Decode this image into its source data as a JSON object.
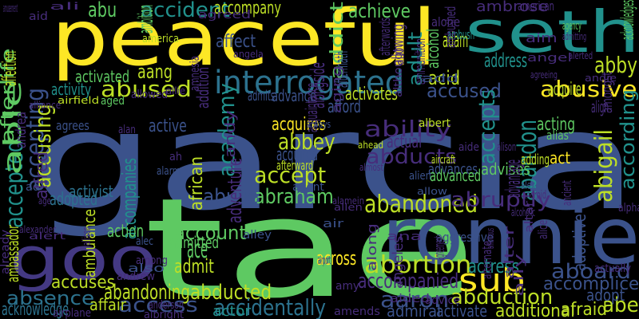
{
  "words": [
    {
      "text": "garcia",
      "color": "#3b528b"
    },
    {
      "text": "tae",
      "color": "#5ec962"
    },
    {
      "text": "peaceful",
      "color": "#fde725"
    },
    {
      "text": "seth",
      "color": "#21918c"
    },
    {
      "text": "ronnie",
      "color": "#3b528b"
    },
    {
      "text": "goo",
      "color": "#443983"
    },
    {
      "text": "interrogated",
      "color": "#2c728e"
    },
    {
      "text": "sub",
      "color": "#fde725"
    },
    {
      "text": "abusive",
      "color": "#fde725"
    },
    {
      "text": "abandoned",
      "color": "#bddf26"
    },
    {
      "text": "abortion",
      "color": "#bddf26"
    },
    {
      "text": "abduction",
      "color": "#bddf26"
    },
    {
      "text": "accident",
      "color": "#21918c"
    },
    {
      "text": "abused",
      "color": "#bddf26"
    },
    {
      "text": "abducts",
      "color": "#472d7b"
    },
    {
      "text": "ability",
      "color": "#472d7b"
    },
    {
      "text": "abigail",
      "color": "#bddf26"
    },
    {
      "text": "abandon",
      "color": "#21918c"
    },
    {
      "text": "abbey",
      "color": "#bddf26"
    },
    {
      "text": "accept",
      "color": "#bddf26"
    },
    {
      "text": "abraham",
      "color": "#5ec962"
    },
    {
      "text": "abruptly",
      "color": "#472d7b"
    },
    {
      "text": "accompanied",
      "color": "#472d7b"
    },
    {
      "text": "abandoning",
      "color": "#bddf26"
    },
    {
      "text": "abducted",
      "color": "#bddf26"
    },
    {
      "text": "absence",
      "color": "#2c728e"
    },
    {
      "text": "accidentally",
      "color": "#2c728e"
    },
    {
      "text": "access",
      "color": "#3b528b"
    },
    {
      "text": "aaron",
      "color": "#3b528b"
    },
    {
      "text": "aboard",
      "color": "#3b528b"
    },
    {
      "text": "accomplice",
      "color": "#3b528b"
    },
    {
      "text": "accused",
      "color": "#3b528b"
    },
    {
      "text": "accepts",
      "color": "#21918c"
    },
    {
      "text": "accepted",
      "color": "#21918c"
    },
    {
      "text": "accepting",
      "color": "#3b528b"
    },
    {
      "text": "accusing",
      "color": "#bddf26"
    },
    {
      "text": "abuse",
      "color": "#3b528b"
    },
    {
      "text": "account",
      "color": "#5ec962"
    },
    {
      "text": "accompany",
      "color": "#bddf26"
    },
    {
      "text": "abby",
      "color": "#bddf26"
    },
    {
      "text": "according",
      "color": "#21918c"
    },
    {
      "text": "acid",
      "color": "#bddf26"
    },
    {
      "text": "abe",
      "color": "#bddf26"
    },
    {
      "text": "acting",
      "color": "#5ec962"
    },
    {
      "text": "achieve",
      "color": "#5ec962"
    },
    {
      "text": "abu",
      "color": "#5ec962"
    },
    {
      "text": "aang",
      "color": "#bddf26"
    },
    {
      "text": "able",
      "color": "#5ec962"
    },
    {
      "text": "accuses",
      "color": "#bddf26"
    },
    {
      "text": "academy",
      "color": "#21918c"
    },
    {
      "text": "accompanies",
      "color": "#21918c"
    },
    {
      "text": "acknowledge",
      "color": "#2c728e"
    },
    {
      "text": "affair",
      "color": "#bddf26"
    },
    {
      "text": "across",
      "color": "#fde725"
    },
    {
      "text": "actress",
      "color": "#21918c"
    },
    {
      "text": "actor",
      "color": "#21918c"
    },
    {
      "text": "admiral",
      "color": "#3b528b"
    },
    {
      "text": "activate",
      "color": "#3b528b"
    },
    {
      "text": "additional",
      "color": "#bddf26"
    },
    {
      "text": "afraid",
      "color": "#bddf26"
    },
    {
      "text": "ace",
      "color": "#5ec962"
    },
    {
      "text": "act",
      "color": "#fde725"
    },
    {
      "text": "acquires",
      "color": "#fde725"
    },
    {
      "text": "acquired",
      "color": "#3b528b"
    },
    {
      "text": "acquire",
      "color": "#bddf26"
    },
    {
      "text": "advances",
      "color": "#3b528b"
    },
    {
      "text": "activist",
      "color": "#2c728e"
    },
    {
      "text": "adopted",
      "color": "#2c728e"
    },
    {
      "text": "advanced",
      "color": "#5ec962"
    },
    {
      "text": "advises",
      "color": "#5ec962"
    },
    {
      "text": "adding",
      "color": "#bddf26"
    },
    {
      "text": "activity",
      "color": "#21918c"
    },
    {
      "text": "active",
      "color": "#3b528b"
    },
    {
      "text": "activated",
      "color": "#5ec962"
    },
    {
      "text": "admit",
      "color": "#bddf26"
    },
    {
      "text": "admitted",
      "color": "#5ec962"
    },
    {
      "text": "action",
      "color": "#5ec962"
    },
    {
      "text": "adult",
      "color": "#21918c"
    },
    {
      "text": "address",
      "color": "#21918c"
    },
    {
      "text": "adam",
      "color": "#bddf26"
    },
    {
      "text": "actual",
      "color": "#472d7b"
    },
    {
      "text": "affect",
      "color": "#3b528b"
    },
    {
      "text": "afford",
      "color": "#3b528b"
    },
    {
      "text": "activates",
      "color": "#bddf26"
    },
    {
      "text": "advance",
      "color": "#3b528b"
    },
    {
      "text": "admits",
      "color": "#3b528b"
    },
    {
      "text": "advice",
      "color": "#472d7b"
    },
    {
      "text": "adopt",
      "color": "#3b528b"
    },
    {
      "text": "adoptive",
      "color": "#3b528b"
    },
    {
      "text": "advantage",
      "color": "#472d7b"
    },
    {
      "text": "addition",
      "color": "#472d7b"
    },
    {
      "text": "adventure",
      "color": "#472d7b"
    },
    {
      "text": "acquaintance",
      "color": "#472d7b"
    },
    {
      "text": "african",
      "color": "#bddf26"
    },
    {
      "text": "afterward",
      "color": "#bddf26"
    },
    {
      "text": "afterlife",
      "color": "#5ec962"
    },
    {
      "text": "affection",
      "color": "#bddf26"
    },
    {
      "text": "ambassador",
      "color": "#bddf26"
    },
    {
      "text": "agent",
      "color": "#3b528b"
    },
    {
      "text": "agrees",
      "color": "#3b528b"
    },
    {
      "text": "aged",
      "color": "#5ec962"
    },
    {
      "text": "age",
      "color": "#472d7b"
    },
    {
      "text": "ad",
      "color": "#3b528b"
    },
    {
      "text": "aggressive",
      "color": "#3b528b"
    },
    {
      "text": "alias",
      "color": "#5ec962"
    },
    {
      "text": "alex",
      "color": "#3b528b"
    },
    {
      "text": "aide",
      "color": "#472d7b"
    },
    {
      "text": "ahead",
      "color": "#bddf26"
    },
    {
      "text": "ah",
      "color": "#472d7b"
    },
    {
      "text": "alarm",
      "color": "#3b528b"
    },
    {
      "text": "ambulance",
      "color": "#bddf26"
    },
    {
      "text": "ambush",
      "color": "#21918c"
    },
    {
      "text": "ambition",
      "color": "#5ec962"
    },
    {
      "text": "alone",
      "color": "#472d7b"
    },
    {
      "text": "alcohol",
      "color": "#5ec962"
    },
    {
      "text": "addict",
      "color": "#5ec962"
    },
    {
      "text": "aftermath",
      "color": "#3b528b"
    },
    {
      "text": "alongside",
      "color": "#472d7b"
    },
    {
      "text": "aging",
      "color": "#472d7b"
    },
    {
      "text": "allowed",
      "color": "#472d7b"
    },
    {
      "text": "amnesia",
      "color": "#472d7b"
    },
    {
      "text": "angela",
      "color": "#472d7b"
    },
    {
      "text": "america",
      "color": "#bddf26"
    },
    {
      "text": "airfield",
      "color": "#bddf26"
    },
    {
      "text": "alliance",
      "color": "#472d7b"
    },
    {
      "text": "allie",
      "color": "#472d7b"
    },
    {
      "text": "alan",
      "color": "#472d7b"
    },
    {
      "text": "aircraft",
      "color": "#bddf26"
    },
    {
      "text": "albert",
      "color": "#bddf26"
    },
    {
      "text": "always",
      "color": "#3b528b"
    },
    {
      "text": "almost",
      "color": "#472d7b"
    },
    {
      "text": "alien",
      "color": "#3b528b"
    },
    {
      "text": "allow",
      "color": "#3b528b"
    },
    {
      "text": "alamein",
      "color": "#472d7b"
    },
    {
      "text": "allen",
      "color": "#472d7b"
    },
    {
      "text": "air",
      "color": "#3b528b"
    },
    {
      "text": "alley",
      "color": "#3b528b"
    },
    {
      "text": "alec",
      "color": "#3b528b"
    },
    {
      "text": "among",
      "color": "#472d7b"
    },
    {
      "text": "also",
      "color": "#3b528b"
    },
    {
      "text": "andrew",
      "color": "#472d7b"
    },
    {
      "text": "airport",
      "color": "#472d7b"
    },
    {
      "text": "amy",
      "color": "#472d7b"
    },
    {
      "text": "aided",
      "color": "#472d7b"
    },
    {
      "text": "amends",
      "color": "#472d7b"
    },
    {
      "text": "airplane",
      "color": "#472d7b"
    },
    {
      "text": "albright",
      "color": "#472d7b"
    },
    {
      "text": "anderson",
      "color": "#472d7b"
    },
    {
      "text": "already",
      "color": "#472d7b"
    },
    {
      "text": "alexander",
      "color": "#472d7b"
    },
    {
      "text": "alert",
      "color": "#472d7b"
    },
    {
      "text": "andrea",
      "color": "#472d7b"
    },
    {
      "text": "alfred",
      "color": "#472d7b"
    },
    {
      "text": "amusement",
      "color": "#472d7b"
    },
    {
      "text": "aid",
      "color": "#472d7b"
    },
    {
      "text": "ali",
      "color": "#472d7b"
    },
    {
      "text": "agreed",
      "color": "#472d7b"
    },
    {
      "text": "afterwards",
      "color": "#472d7b"
    },
    {
      "text": "allowing",
      "color": "#472d7b"
    },
    {
      "text": "although",
      "color": "#472d7b"
    },
    {
      "text": "ammunition",
      "color": "#472d7b"
    },
    {
      "text": "ambushed",
      "color": "#472d7b"
    },
    {
      "text": "amongst",
      "color": "#472d7b"
    },
    {
      "text": "ambrose",
      "color": "#472d7b"
    },
    {
      "text": "american",
      "color": "#472d7b"
    },
    {
      "text": "acknowledges",
      "color": "#5ec962"
    },
    {
      "text": "agency",
      "color": "#5ec962"
    },
    {
      "text": "admitting",
      "color": "#472d7b"
    },
    {
      "text": "aim",
      "color": "#472d7b"
    },
    {
      "text": "angel",
      "color": "#472d7b"
    },
    {
      "text": "alerted",
      "color": "#472d7b"
    },
    {
      "text": "agreeing",
      "color": "#472d7b"
    },
    {
      "text": "andie",
      "color": "#472d7b"
    },
    {
      "text": "align",
      "color": "#472d7b"
    },
    {
      "text": "alison",
      "color": "#472d7b"
    },
    {
      "text": "add",
      "color": "#3b528b"
    },
    {
      "text": "andy",
      "color": "#472d7b"
    },
    {
      "text": "android",
      "color": "#472d7b"
    },
    {
      "text": "alcoholic",
      "color": "#472d7b"
    },
    {
      "text": "altar",
      "color": "#472d7b"
    },
    {
      "text": "alice",
      "color": "#472d7b"
    },
    {
      "text": "alpha",
      "color": "#472d7b"
    },
    {
      "text": "ana",
      "color": "#472d7b"
    },
    {
      "text": "along",
      "color": "#472d7b"
    },
    {
      "text": "angeles",
      "color": "#472d7b"
    },
    {
      "text": "agreement",
      "color": "#472d7b"
    },
    {
      "text": "ambitious",
      "color": "#472d7b"
    },
    {
      "text": "alter",
      "color": "#472d7b"
    },
    {
      "text": "ally",
      "color": "#472d7b"
    },
    {
      "text": "alternate",
      "color": "#472d7b"
    },
    {
      "text": "actually",
      "color": "#472d7b"
    },
    {
      "text": "ancient",
      "color": "#472d7b"
    },
    {
      "text": "allison",
      "color": "#472d7b"
    },
    {
      "text": "alive",
      "color": "#472d7b"
    },
    {
      "text": "ago",
      "color": "#472d7b"
    }
  ]
}
